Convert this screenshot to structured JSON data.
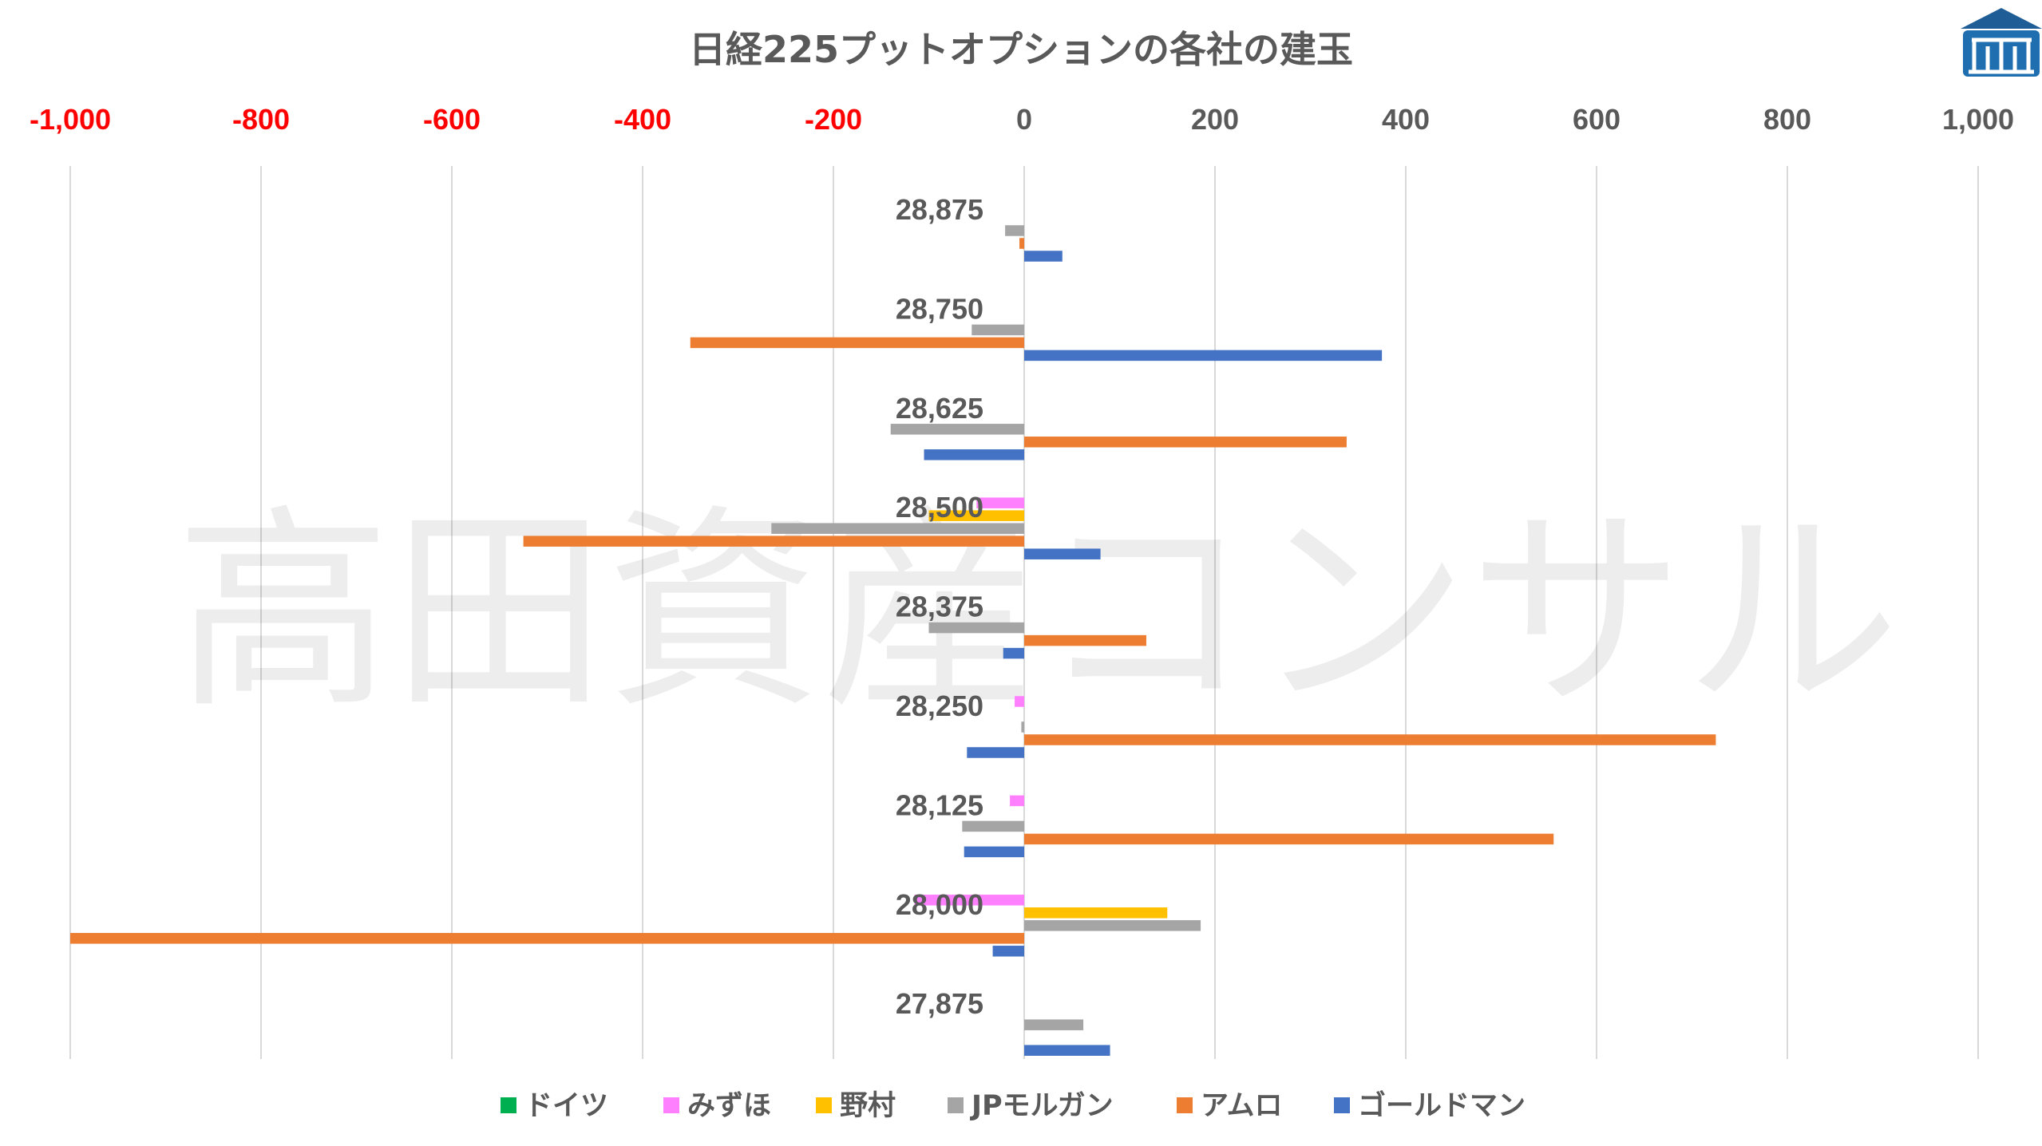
{
  "chart_data": {
    "type": "bar",
    "orientation": "horizontal",
    "title": "日経225プットオプションの各社の建玉",
    "watermark": "高田資産コンサル",
    "logo": "company-logo",
    "xlim": [
      -1000,
      1000
    ],
    "x_ticks": [
      -1000,
      -800,
      -600,
      -400,
      -200,
      0,
      200,
      400,
      600,
      800,
      1000
    ],
    "x_tick_labels": [
      "-1,000",
      "-800",
      "-600",
      "-400",
      "-200",
      "0",
      "200",
      "400",
      "600",
      "800",
      "1,000"
    ],
    "negative_tick_color": "#ff0000",
    "positive_tick_color": "#595959",
    "grid": true,
    "legend_position": "bottom",
    "categories": [
      "28,875",
      "28,750",
      "28,625",
      "28,500",
      "28,375",
      "28,250",
      "28,125",
      "28,000",
      "27,875"
    ],
    "series": [
      {
        "name": "ドイツ",
        "color": "#00b050",
        "values": [
          0,
          0,
          0,
          0,
          0,
          0,
          0,
          0,
          0
        ]
      },
      {
        "name": "みずほ",
        "color": "#ff80ff",
        "values": [
          0,
          0,
          0,
          -50,
          0,
          -10,
          -15,
          -115,
          0
        ]
      },
      {
        "name": "野村",
        "color": "#ffc000",
        "values": [
          0,
          0,
          0,
          -100,
          0,
          0,
          0,
          150,
          0
        ]
      },
      {
        "name": "JPモルガン",
        "color": "#a5a5a5",
        "values": [
          -20,
          -55,
          -140,
          -265,
          -100,
          -3,
          -65,
          185,
          62
        ]
      },
      {
        "name": "アムロ",
        "color": "#ed7d31",
        "values": [
          -5,
          -350,
          338,
          -525,
          128,
          725,
          555,
          -1000,
          0
        ]
      },
      {
        "name": "ゴールドマン",
        "color": "#4472c4",
        "values": [
          40,
          375,
          -105,
          80,
          -22,
          -60,
          -63,
          -33,
          90
        ]
      }
    ]
  }
}
